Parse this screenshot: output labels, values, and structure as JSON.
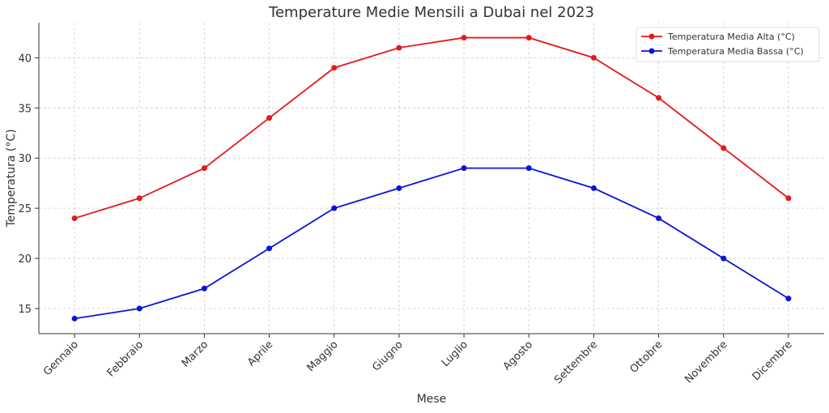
{
  "chart_data": {
    "type": "line",
    "title": "Temperature Medie Mensili a Dubai nel 2023",
    "xlabel": "Mese",
    "ylabel": "Temperatura (°C)",
    "categories": [
      "Gennaio",
      "Febbraio",
      "Marzo",
      "Aprile",
      "Maggio",
      "Giugno",
      "Luglio",
      "Agosto",
      "Settembre",
      "Ottobre",
      "Novembre",
      "Dicembre"
    ],
    "series": [
      {
        "name": "Temperatura Media Alta (°C)",
        "color": "#e31a1c",
        "values": [
          24,
          26,
          29,
          34,
          39,
          41,
          42,
          42,
          40,
          36,
          31,
          26
        ]
      },
      {
        "name": "Temperatura Media Bassa (°C)",
        "color": "#0a14d6",
        "values": [
          14,
          15,
          17,
          21,
          25,
          27,
          29,
          29,
          27,
          24,
          20,
          16
        ]
      }
    ],
    "yticks": [
      15,
      20,
      25,
      30,
      35,
      40
    ],
    "ylim": [
      12.5,
      43.5
    ],
    "grid": true,
    "legend": "top-right"
  }
}
